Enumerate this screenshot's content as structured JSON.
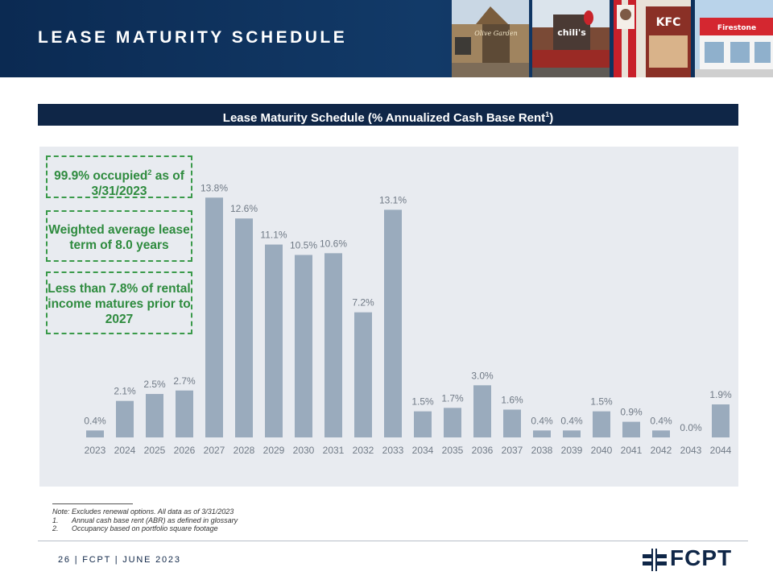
{
  "header": {
    "title": "LEASE MATURITY SCHEDULE"
  },
  "photos": [
    {
      "brand": "olive-garden",
      "sign_text": "Olive Garden"
    },
    {
      "brand": "chilis",
      "sign_text": "chili's"
    },
    {
      "brand": "kfc",
      "sign_text": "KFC"
    },
    {
      "brand": "firestone",
      "sign_text": "Firestone"
    }
  ],
  "subtitle": {
    "text": "Lease Maturity Schedule (% Annualized Cash Base Rent",
    "sup": "1",
    "close": ")"
  },
  "callouts": [
    {
      "pre": "99.9% occupied",
      "sup": "2",
      "post": " as of 3/31/2023"
    },
    {
      "text": "Weighted average lease term of 8.0 years"
    },
    {
      "text": "Less than 7.8% of rental income matures prior to 2027"
    }
  ],
  "chart_data": {
    "type": "bar",
    "title": "Lease Maturity Schedule (% Annualized Cash Base Rent1)",
    "categories": [
      "2023",
      "2024",
      "2025",
      "2026",
      "2027",
      "2028",
      "2029",
      "2030",
      "2031",
      "2032",
      "2033",
      "2034",
      "2035",
      "2036",
      "2037",
      "2038",
      "2039",
      "2040",
      "2041",
      "2042",
      "2043",
      "2044"
    ],
    "values": [
      0.4,
      2.1,
      2.5,
      2.7,
      13.8,
      12.6,
      11.1,
      10.5,
      10.6,
      7.2,
      13.1,
      1.5,
      1.7,
      3.0,
      1.6,
      0.4,
      0.4,
      1.5,
      0.9,
      0.4,
      0.0,
      1.9
    ],
    "value_labels": [
      "0.4%",
      "2.1%",
      "2.5%",
      "2.7%",
      "13.8%",
      "12.6%",
      "11.1%",
      "10.5%",
      "10.6%",
      "7.2%",
      "13.1%",
      "1.5%",
      "1.7%",
      "3.0%",
      "1.6%",
      "0.4%",
      "0.4%",
      "1.5%",
      "0.9%",
      "0.4%",
      "0.0%",
      "1.9%"
    ],
    "xlabel": "",
    "ylabel": "",
    "ylim": [
      0,
      14
    ],
    "grid": false,
    "colors": {
      "bar": "#9aabbd",
      "label": "#707a86",
      "panel": "#e8ebf0"
    }
  },
  "notes": {
    "main": "Note: Excludes renewal options. All data as of 3/31/2023",
    "items": [
      {
        "num": "1.",
        "text": "Annual cash base rent (ABR) as defined in glossary"
      },
      {
        "num": "2.",
        "text": "Occupancy based on portfolio square footage"
      }
    ]
  },
  "footer": {
    "text": "26 | FCPT | JUNE 2023",
    "logo_text": "FCPT"
  },
  "colors": {
    "navy": "#0f2647",
    "green": "#3a9a4a"
  }
}
